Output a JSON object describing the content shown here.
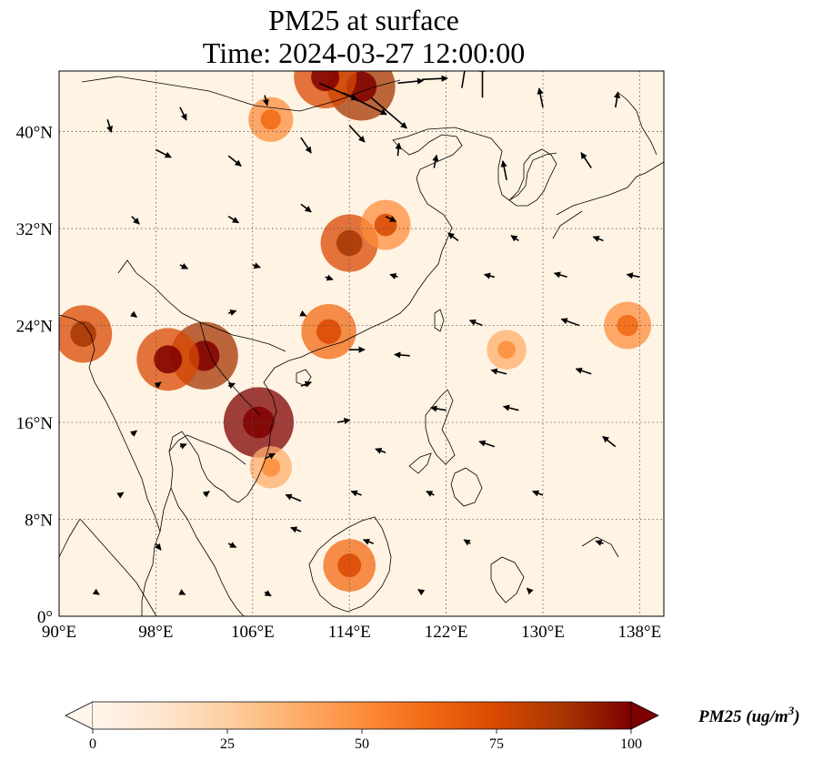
{
  "title": {
    "line1": "PM25 at surface",
    "line2": "Time: 2024-03-27 12:00:00"
  },
  "map": {
    "extent": {
      "lon_min": 90,
      "lon_max": 140,
      "lat_min": 0,
      "lat_max": 45
    },
    "gridlines": "dotted",
    "lon_ticks": [
      {
        "value": 90,
        "label": "90°E"
      },
      {
        "value": 98,
        "label": "98°E"
      },
      {
        "value": 106,
        "label": "106°E"
      },
      {
        "value": 114,
        "label": "114°E"
      },
      {
        "value": 122,
        "label": "122°E"
      },
      {
        "value": 130,
        "label": "130°E"
      },
      {
        "value": 138,
        "label": "138°E"
      }
    ],
    "lat_ticks": [
      {
        "value": 0,
        "label": "0°"
      },
      {
        "value": 8,
        "label": "8°N"
      },
      {
        "value": 16,
        "label": "16°N"
      },
      {
        "value": 24,
        "label": "24°N"
      },
      {
        "value": 32,
        "label": "32°N"
      },
      {
        "value": 40,
        "label": "40°N"
      }
    ],
    "base_color": "#fff3e3",
    "pm25_hotspots": [
      {
        "name": "north-china-plume",
        "lon": 115,
        "lat": 43.7,
        "value": 90
      },
      {
        "name": "north-china-plume-2",
        "lon": 112,
        "lat": 44.5,
        "value": 80
      },
      {
        "name": "hebei",
        "lon": 107.5,
        "lat": 41,
        "value": 45
      },
      {
        "name": "central-china",
        "lon": 114,
        "lat": 30.8,
        "value": 70
      },
      {
        "name": "yangtze",
        "lon": 117,
        "lat": 32.3,
        "value": 55
      },
      {
        "name": "guangdong",
        "lon": 112.3,
        "lat": 23.5,
        "value": 65
      },
      {
        "name": "myanmar",
        "lon": 92,
        "lat": 23.3,
        "value": 70
      },
      {
        "name": "laos-north",
        "lon": 102,
        "lat": 21.5,
        "value": 90
      },
      {
        "name": "thailand-north",
        "lon": 99,
        "lat": 21.2,
        "value": 80
      },
      {
        "name": "laos-south",
        "lon": 106.5,
        "lat": 16,
        "value": 95
      },
      {
        "name": "cambodia",
        "lon": 107.5,
        "lat": 12.3,
        "value": 40
      },
      {
        "name": "borneo-west",
        "lon": 114,
        "lat": 4.2,
        "value": 60
      },
      {
        "name": "taiwan-strait-band",
        "lon": 127,
        "lat": 22,
        "value": 35
      },
      {
        "name": "pacific-band",
        "lon": 137,
        "lat": 24,
        "value": 50
      }
    ],
    "wind_vectors": [
      {
        "lon": 111.5,
        "lat": 44.0,
        "u": 3.0,
        "v": -1.3
      },
      {
        "lon": 113.5,
        "lat": 43.2,
        "u": 3.4,
        "v": -1.7
      },
      {
        "lon": 115.8,
        "lat": 42.8,
        "u": 2.8,
        "v": -2.4
      },
      {
        "lon": 118,
        "lat": 44.0,
        "u": 2.0,
        "v": 0.2
      },
      {
        "lon": 120,
        "lat": 44.3,
        "u": 2.0,
        "v": 0.1
      },
      {
        "lon": 123.3,
        "lat": 43.6,
        "u": 0.4,
        "v": 2.5
      },
      {
        "lon": 125,
        "lat": 42.8,
        "u": 0.0,
        "v": 2.5
      },
      {
        "lon": 114,
        "lat": 40.5,
        "u": 1.2,
        "v": -1.3
      },
      {
        "lon": 110,
        "lat": 39.5,
        "u": 0.8,
        "v": -1.2
      },
      {
        "lon": 104,
        "lat": 38,
        "u": 1.0,
        "v": -0.8
      },
      {
        "lon": 98,
        "lat": 38.5,
        "u": 1.2,
        "v": -0.6
      },
      {
        "lon": 94,
        "lat": 41,
        "u": 0.3,
        "v": -1.0
      },
      {
        "lon": 100,
        "lat": 42,
        "u": 0.5,
        "v": -1.0
      },
      {
        "lon": 107,
        "lat": 43,
        "u": 0.2,
        "v": -0.8
      },
      {
        "lon": 118,
        "lat": 38,
        "u": 0.1,
        "v": 1.0
      },
      {
        "lon": 121,
        "lat": 37,
        "u": 0.2,
        "v": 1.0
      },
      {
        "lon": 127,
        "lat": 36,
        "u": -0.3,
        "v": 1.5
      },
      {
        "lon": 134,
        "lat": 37,
        "u": -0.8,
        "v": 1.2
      },
      {
        "lon": 130,
        "lat": 42,
        "u": -0.3,
        "v": 1.5
      },
      {
        "lon": 136,
        "lat": 42,
        "u": 0.2,
        "v": 1.2
      },
      {
        "lon": 110,
        "lat": 34,
        "u": 0.8,
        "v": -0.6
      },
      {
        "lon": 104,
        "lat": 33,
        "u": 0.8,
        "v": -0.5
      },
      {
        "lon": 96,
        "lat": 33,
        "u": 0.6,
        "v": -0.6
      },
      {
        "lon": 117,
        "lat": 33,
        "u": 0.8,
        "v": -0.4
      },
      {
        "lon": 123,
        "lat": 31,
        "u": -0.8,
        "v": 0.6
      },
      {
        "lon": 128,
        "lat": 31,
        "u": -0.6,
        "v": 0.4
      },
      {
        "lon": 135,
        "lat": 31,
        "u": -0.8,
        "v": 0.3
      },
      {
        "lon": 100,
        "lat": 29,
        "u": 0.6,
        "v": -0.3
      },
      {
        "lon": 106,
        "lat": 29,
        "u": 0.6,
        "v": -0.2
      },
      {
        "lon": 112,
        "lat": 28,
        "u": 0.6,
        "v": -0.2
      },
      {
        "lon": 118,
        "lat": 28,
        "u": -0.6,
        "v": 0.2
      },
      {
        "lon": 126,
        "lat": 28,
        "u": -0.8,
        "v": 0.2
      },
      {
        "lon": 132,
        "lat": 28,
        "u": -1.0,
        "v": 0.3
      },
      {
        "lon": 138,
        "lat": 28,
        "u": -1.0,
        "v": 0.2
      },
      {
        "lon": 96,
        "lat": 25,
        "u": 0.4,
        "v": -0.3
      },
      {
        "lon": 104,
        "lat": 25,
        "u": 0.6,
        "v": 0.2
      },
      {
        "lon": 110,
        "lat": 25,
        "u": 0.4,
        "v": -0.2
      },
      {
        "lon": 125,
        "lat": 24,
        "u": -1.0,
        "v": 0.4
      },
      {
        "lon": 133,
        "lat": 24,
        "u": -1.4,
        "v": 0.5
      },
      {
        "lon": 114,
        "lat": 22,
        "u": 1.2,
        "v": 0.0
      },
      {
        "lon": 119,
        "lat": 21.5,
        "u": -1.2,
        "v": 0.1
      },
      {
        "lon": 127,
        "lat": 20,
        "u": -1.2,
        "v": 0.3
      },
      {
        "lon": 134,
        "lat": 20,
        "u": -1.2,
        "v": 0.4
      },
      {
        "lon": 110,
        "lat": 19,
        "u": 0.8,
        "v": 0.3
      },
      {
        "lon": 98,
        "lat": 19,
        "u": 0.4,
        "v": 0.3
      },
      {
        "lon": 104,
        "lat": 19,
        "u": 0.5,
        "v": 0.2
      },
      {
        "lon": 122,
        "lat": 17,
        "u": -1.2,
        "v": 0.2
      },
      {
        "lon": 128,
        "lat": 17,
        "u": -1.2,
        "v": 0.3
      },
      {
        "lon": 113,
        "lat": 16,
        "u": 1.0,
        "v": 0.2
      },
      {
        "lon": 96,
        "lat": 15,
        "u": 0.4,
        "v": 0.3
      },
      {
        "lon": 100,
        "lat": 14,
        "u": 0.5,
        "v": 0.2
      },
      {
        "lon": 107,
        "lat": 13,
        "u": 0.8,
        "v": 0.4
      },
      {
        "lon": 117,
        "lat": 13.5,
        "u": -0.8,
        "v": 0.3
      },
      {
        "lon": 126,
        "lat": 14,
        "u": -1.2,
        "v": 0.4
      },
      {
        "lon": 136,
        "lat": 14,
        "u": -1.0,
        "v": 0.8
      },
      {
        "lon": 110,
        "lat": 9.5,
        "u": -1.2,
        "v": 0.5
      },
      {
        "lon": 115,
        "lat": 10,
        "u": -0.8,
        "v": 0.3
      },
      {
        "lon": 121,
        "lat": 10,
        "u": -0.6,
        "v": 0.3
      },
      {
        "lon": 130,
        "lat": 10,
        "u": -0.8,
        "v": 0.3
      },
      {
        "lon": 95,
        "lat": 10,
        "u": 0.3,
        "v": 0.2
      },
      {
        "lon": 102,
        "lat": 10,
        "u": 0.4,
        "v": 0.3
      },
      {
        "lon": 98,
        "lat": 6,
        "u": 0.4,
        "v": -0.5
      },
      {
        "lon": 104,
        "lat": 6,
        "u": 0.6,
        "v": -0.3
      },
      {
        "lon": 110,
        "lat": 7,
        "u": -0.8,
        "v": 0.3
      },
      {
        "lon": 116,
        "lat": 6,
        "u": -0.8,
        "v": 0.3
      },
      {
        "lon": 124,
        "lat": 6,
        "u": -0.5,
        "v": 0.3
      },
      {
        "lon": 135,
        "lat": 6,
        "u": -0.6,
        "v": 0.2
      },
      {
        "lon": 93,
        "lat": 2,
        "u": 0.3,
        "v": -0.2
      },
      {
        "lon": 100,
        "lat": 2,
        "u": 0.4,
        "v": -0.2
      },
      {
        "lon": 107,
        "lat": 2,
        "u": 0.5,
        "v": -0.3
      },
      {
        "lon": 120,
        "lat": 2,
        "u": -0.3,
        "v": 0.2
      },
      {
        "lon": 129,
        "lat": 2,
        "u": -0.3,
        "v": 0.3
      }
    ]
  },
  "colorbar": {
    "label_text": "PM25 (ug/m",
    "label_sup": "3",
    "label_close": ")",
    "ticks": [
      {
        "value": 0,
        "label": "0"
      },
      {
        "value": 25,
        "label": "25"
      },
      {
        "value": 50,
        "label": "50"
      },
      {
        "value": 75,
        "label": "75"
      },
      {
        "value": 100,
        "label": "100"
      }
    ],
    "range": [
      0,
      100
    ],
    "extend": "both",
    "colormap": [
      "#fff5eb",
      "#fee6ce",
      "#fdd0a2",
      "#fdae6b",
      "#fd8d3c",
      "#f16913",
      "#d94801",
      "#a63603",
      "#7f0000"
    ]
  }
}
